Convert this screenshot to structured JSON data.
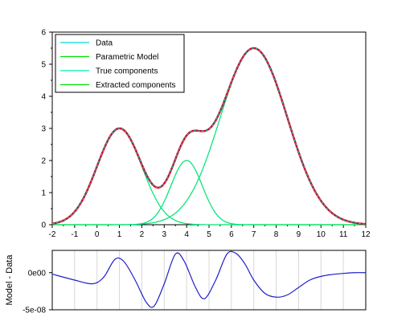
{
  "chart_data": [
    {
      "type": "line",
      "xlim": [
        -2,
        12
      ],
      "ylim": [
        0,
        6
      ],
      "x_ticks": [
        -2,
        -1,
        0,
        1,
        2,
        3,
        4,
        5,
        6,
        7,
        8,
        9,
        10,
        11,
        12
      ],
      "y_ticks": [
        0,
        1,
        2,
        3,
        4,
        5,
        6
      ],
      "grid": false,
      "legend_position": "top-left",
      "legend": [
        "Data",
        "Parametric Model",
        "True components",
        "Extracted components"
      ],
      "components": [
        {
          "amplitude": 3.0,
          "center": 1.0,
          "sigma": 1.0
        },
        {
          "amplitude": 2.0,
          "center": 4.0,
          "sigma": 0.7
        },
        {
          "amplitude": 5.5,
          "center": 7.0,
          "sigma": 1.5
        }
      ],
      "model_color": "#d0021b",
      "data_color": "#00d8d8",
      "true_component_color": "#00e6b4",
      "extracted_component_color": "#00e000"
    },
    {
      "type": "line",
      "ylabel": "Model - Data",
      "xlim": [
        -2,
        12
      ],
      "ylim": [
        -5e-08,
        3e-08
      ],
      "y_tick_labels": [
        {
          "value": 0,
          "label": "0e00"
        },
        {
          "value": -5e-08,
          "label": "-5e-08"
        }
      ],
      "grid": true,
      "series": [
        {
          "x": [
            -2,
            -1,
            -0.2,
            0.3,
            0.8,
            1.2,
            1.7,
            2.2,
            2.55,
            3.0,
            3.5,
            3.9,
            4.4,
            4.8,
            5.3,
            5.8,
            6.2,
            6.6,
            7.0,
            7.5,
            8.0,
            8.5,
            9.0,
            9.5,
            10.0,
            10.5,
            11.0,
            11.5,
            12.0
          ],
          "y": [
            -2e-09,
            -1e-08,
            -1.5e-08,
            -6e-09,
            1.8e-08,
            1.5e-08,
            -1e-08,
            -4e-08,
            -4.5e-08,
            -1.5e-08,
            2.5e-08,
            1.5e-08,
            -2e-08,
            -3.5e-08,
            -1e-08,
            2.5e-08,
            2.6e-08,
            1.2e-08,
            -1e-08,
            -2.8e-08,
            -3.3e-08,
            -3e-08,
            -2e-08,
            -1e-08,
            -5e-09,
            -2.5e-09,
            -1e-09,
            0.0,
            0.0
          ]
        }
      ],
      "line_color": "#1f1fcc",
      "grid_color": "#d8d8d8"
    }
  ]
}
